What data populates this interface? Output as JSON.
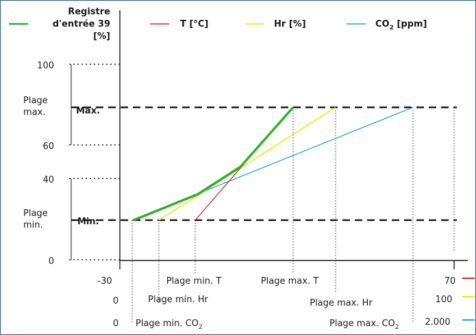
{
  "legend": {
    "register": {
      "lines": [
        "Registre",
        "d'entrée 39",
        "[%]"
      ],
      "color": "#2db02d"
    },
    "temperature": {
      "label": "T [°C]",
      "color": "#d62728"
    },
    "humidity": {
      "label": "Hr [%]",
      "color": "#f2e600"
    },
    "co2": {
      "label_main": "CO",
      "label_sub": "2",
      "label_tail": " [ppm]",
      "color": "#1fa3e0"
    }
  },
  "y_axis": {
    "ticks": [
      "100",
      "60",
      "40",
      "0"
    ],
    "plage_max": [
      "Plage",
      "max."
    ],
    "plage_min": [
      "Plage",
      "min."
    ]
  },
  "levels": {
    "max_label": "Max.",
    "min_label": "Min."
  },
  "x_scales": {
    "temperature": {
      "min": "-30",
      "max": "70",
      "point_min": "Plage min. T",
      "point_max": "Plage max. T"
    },
    "humidity": {
      "min": "0",
      "max": "100",
      "point_min": "Plage min. Hr",
      "point_max": "Plage max. Hr"
    },
    "co2": {
      "min": "0",
      "max": "2.000",
      "point_min_main": "Plage min. CO",
      "point_min_sub": "2",
      "point_max_main": "Plage max. CO",
      "point_max_sub": "2"
    }
  }
}
